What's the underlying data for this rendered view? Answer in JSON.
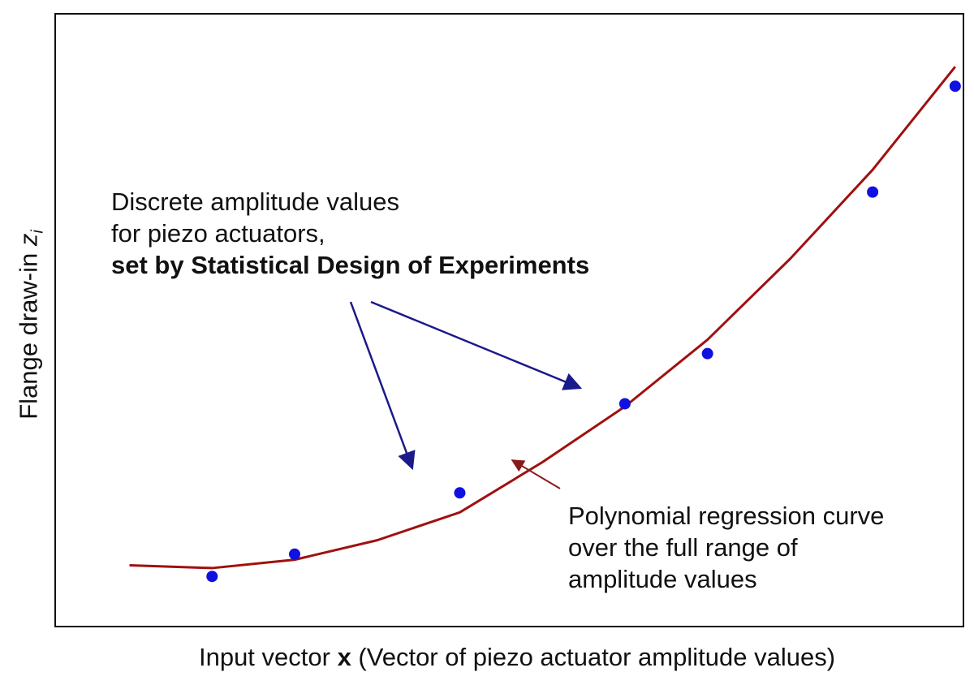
{
  "chart_data": {
    "type": "scatter",
    "xlabel": {
      "prefix": "Input vector ",
      "var": "x",
      "suffix": " (Vector of piezo actuator amplitude values)"
    },
    "ylabel": {
      "main": "Flange draw-in ",
      "var": "z",
      "sub": "i"
    },
    "series": [
      {
        "kind": "points",
        "color": "#1010e0",
        "points": [
          {
            "x": 1,
            "y": 0.9
          },
          {
            "x": 2,
            "y": 1.3
          },
          {
            "x": 4,
            "y": 2.4
          },
          {
            "x": 6,
            "y": 4.0
          },
          {
            "x": 7,
            "y": 4.9
          },
          {
            "x": 9,
            "y": 7.8
          },
          {
            "x": 10,
            "y": 9.7
          }
        ]
      },
      {
        "kind": "curve",
        "color": "#a01010",
        "points": [
          {
            "x": 0.0,
            "y": 1.1
          },
          {
            "x": 1.0,
            "y": 1.05
          },
          {
            "x": 2.0,
            "y": 1.2
          },
          {
            "x": 3.0,
            "y": 1.55
          },
          {
            "x": 4.0,
            "y": 2.05
          },
          {
            "x": 5.0,
            "y": 2.95
          },
          {
            "x": 6.0,
            "y": 3.95
          },
          {
            "x": 7.0,
            "y": 5.15
          },
          {
            "x": 8.0,
            "y": 6.6
          },
          {
            "x": 9.0,
            "y": 8.2
          },
          {
            "x": 10.0,
            "y": 10.05
          }
        ]
      }
    ],
    "xlim": [
      -0.9,
      10.1
    ],
    "ylim": [
      0.0,
      11.0
    ],
    "grid": false,
    "annotations": {
      "points_note": {
        "lines": [
          "Discrete amplitude values",
          "for piezo actuators,"
        ],
        "bold_line": "set by Statistical Design of Experiments",
        "arrow_color": "#1a1a8a"
      },
      "curve_note": {
        "lines": [
          "Polynomial regression curve",
          "over the full range of",
          "amplitude values"
        ],
        "arrow_color": "#8a1a1a"
      }
    }
  }
}
